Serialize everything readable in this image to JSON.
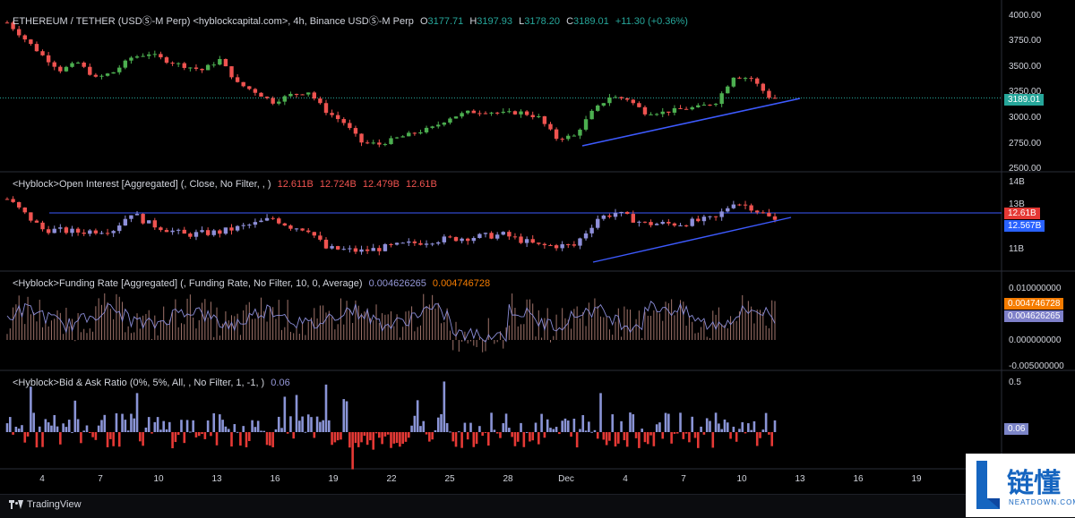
{
  "header": {
    "symbol": "ETHEREUM / TETHER (USDⓈ-M Perp) <hyblockcapital.com>, 4h, Binance USDⓈ-M Perp",
    "ohlc": [
      {
        "k": "O",
        "v": "3177.71"
      },
      {
        "k": "H",
        "v": "3197.93"
      },
      {
        "k": "L",
        "v": "3178.20"
      },
      {
        "k": "C",
        "v": "3189.01"
      }
    ],
    "change": "+11.30 (+0.36%)"
  },
  "price_pane": {
    "axis_labels": [
      "4000.00",
      "3750.00",
      "3500.00",
      "3250.00",
      "3000.00",
      "2750.00",
      "2500.00"
    ],
    "last_price_tag": "3189.01",
    "colors": {
      "up": "#26a69a",
      "up_bright": "#4caf50",
      "down": "#ef5350",
      "trendline": "#3d5afe"
    }
  },
  "oi_pane": {
    "title": "<Hyblock>Open Interest [Aggregated] (, Close, No Filter, , )",
    "values": [
      "12.611B",
      "12.724B",
      "12.479B",
      "12.61B"
    ],
    "axis_labels": [
      "14B",
      "13B",
      "11B"
    ],
    "tags": [
      {
        "label": "12.61B",
        "color": "#e53935"
      },
      {
        "label": "12.567B",
        "color": "#2962ff"
      }
    ]
  },
  "funding_pane": {
    "title": "<Hyblock>Funding Rate [Aggregated] (, Funding Rate, No Filter, 10, 0, Average)",
    "values": [
      {
        "v": "0.004626265",
        "color": "#9598d8"
      },
      {
        "v": "0.004746728",
        "color": "#f57c00"
      }
    ],
    "axis_labels": [
      "0.010000000",
      "0.000000000",
      "-0.005000000"
    ],
    "tags": [
      {
        "label": "0.004746728",
        "color": "#f57c00"
      },
      {
        "label": "0.004626265",
        "color": "#7e80c9"
      }
    ]
  },
  "bidask_pane": {
    "title": "<Hyblock>Bid & Ask Ratio (0%, 5%, All, , No Filter, 1, -1, )",
    "value": "0.06",
    "axis_labels": [
      "0.5"
    ],
    "tag": {
      "label": "0.06",
      "color": "#7b84c7"
    }
  },
  "time_axis": [
    "4",
    "7",
    "10",
    "13",
    "16",
    "19",
    "22",
    "25",
    "28",
    "Dec",
    "4",
    "7",
    "10",
    "13",
    "16",
    "19"
  ],
  "footer": {
    "brand": "TradingView"
  },
  "watermark": {
    "cn": "链懂",
    "en": "NEATDOWN.COM"
  },
  "chart_data": {
    "type": "candlestick",
    "title": "ETHEREUM / TETHER (USDⓈ-M Perp)",
    "timeframe": "4h",
    "ylim": [
      2500,
      4000
    ],
    "last_close": 3189.01,
    "price_path": [
      [
        0,
        3920
      ],
      [
        3,
        3760
      ],
      [
        6,
        3600
      ],
      [
        9,
        3460
      ],
      [
        12,
        3530
      ],
      [
        15,
        3380
      ],
      [
        18,
        3440
      ],
      [
        21,
        3580
      ],
      [
        24,
        3620
      ],
      [
        27,
        3550
      ],
      [
        30,
        3500
      ],
      [
        33,
        3460
      ],
      [
        36,
        3560
      ],
      [
        39,
        3330
      ],
      [
        42,
        3250
      ],
      [
        45,
        3150
      ],
      [
        48,
        3220
      ],
      [
        51,
        3250
      ],
      [
        54,
        3060
      ],
      [
        57,
        2950
      ],
      [
        60,
        2760
      ],
      [
        63,
        2740
      ],
      [
        66,
        2800
      ],
      [
        69,
        2850
      ],
      [
        72,
        2900
      ],
      [
        75,
        3000
      ],
      [
        78,
        3050
      ],
      [
        81,
        3060
      ],
      [
        84,
        3040
      ],
      [
        87,
        3050
      ],
      [
        90,
        3000
      ],
      [
        93,
        2800
      ],
      [
        96,
        2820
      ],
      [
        99,
        3050
      ],
      [
        102,
        3200
      ],
      [
        105,
        3180
      ],
      [
        108,
        3050
      ],
      [
        111,
        3050
      ],
      [
        114,
        3080
      ],
      [
        117,
        3100
      ],
      [
        120,
        3150
      ],
      [
        123,
        3400
      ],
      [
        126,
        3380
      ],
      [
        129,
        3200
      ],
      [
        130,
        3189
      ]
    ],
    "oi_billions_path": [
      [
        0,
        13.4
      ],
      [
        6,
        12.3
      ],
      [
        12,
        12.2
      ],
      [
        18,
        12.3
      ],
      [
        21,
        12.9
      ],
      [
        24,
        12.5
      ],
      [
        30,
        12.1
      ],
      [
        36,
        12.2
      ],
      [
        42,
        12.5
      ],
      [
        45,
        12.7
      ],
      [
        48,
        12.4
      ],
      [
        51,
        12.3
      ],
      [
        54,
        11.6
      ],
      [
        60,
        11.5
      ],
      [
        66,
        11.7
      ],
      [
        72,
        11.9
      ],
      [
        78,
        12.0
      ],
      [
        84,
        12.1
      ],
      [
        90,
        11.7
      ],
      [
        96,
        11.7
      ],
      [
        100,
        12.7
      ],
      [
        103,
        12.9
      ],
      [
        108,
        12.5
      ],
      [
        114,
        12.5
      ],
      [
        120,
        12.7
      ],
      [
        123,
        13.3
      ],
      [
        126,
        13.1
      ],
      [
        130,
        12.61
      ]
    ]
  }
}
